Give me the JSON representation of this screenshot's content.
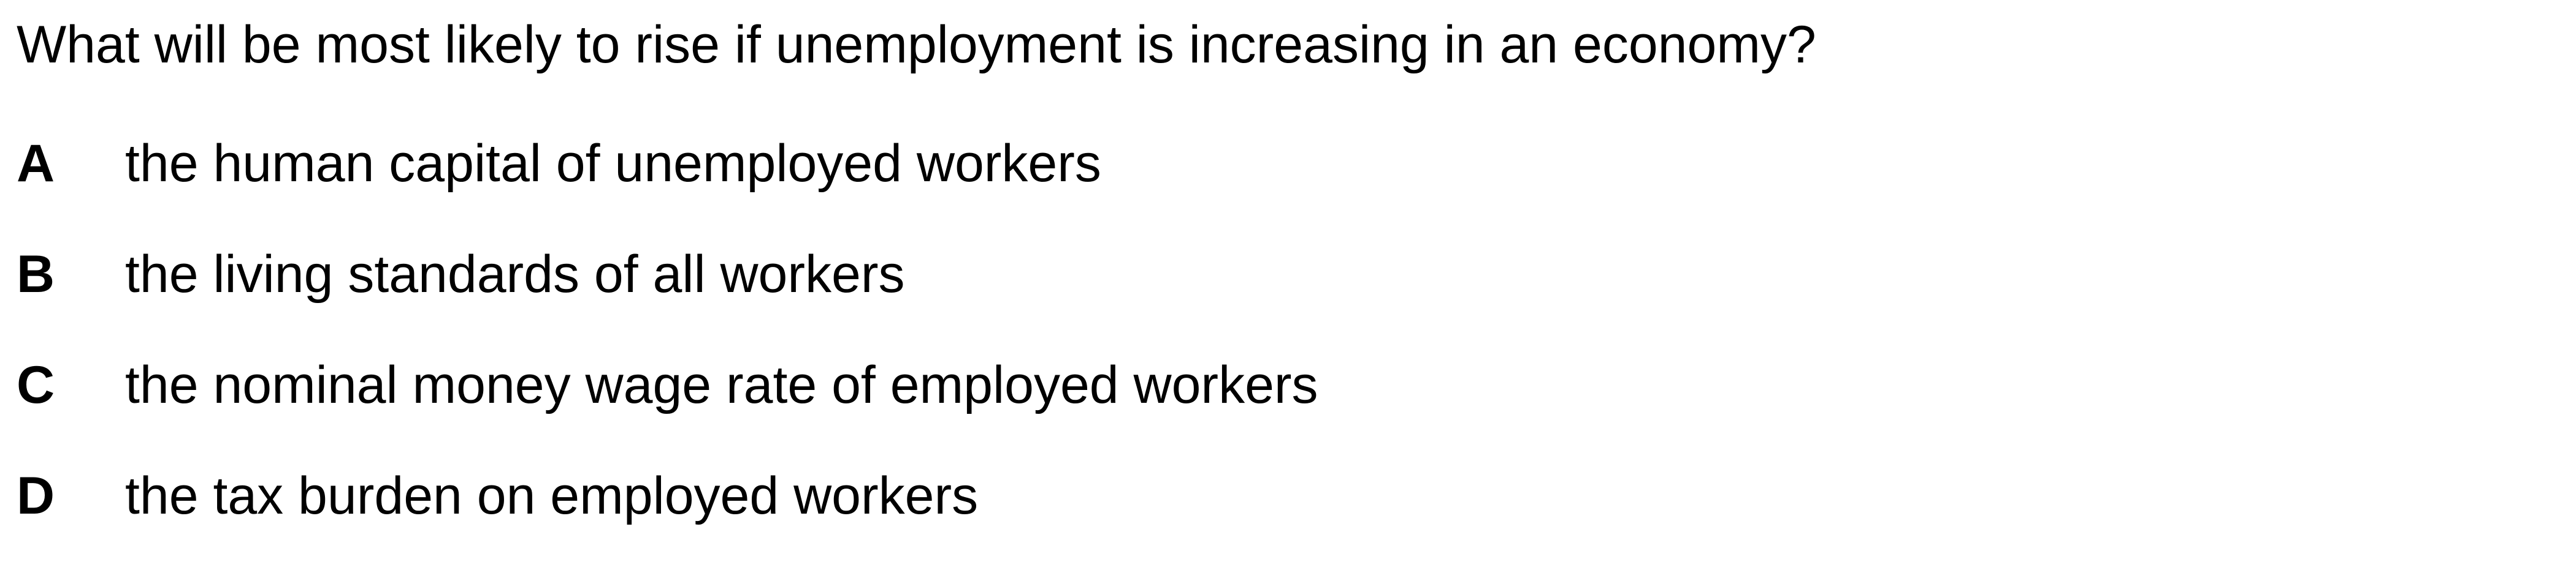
{
  "question": {
    "text": "What will be most likely to rise if unemployment is increasing in an economy?"
  },
  "options": [
    {
      "letter": "A",
      "text": "the human capital of unemployed workers"
    },
    {
      "letter": "B",
      "text": "the living standards of all workers"
    },
    {
      "letter": "C",
      "text": "the nominal money wage rate of employed workers"
    },
    {
      "letter": "D",
      "text": "the tax burden on employed workers"
    }
  ]
}
